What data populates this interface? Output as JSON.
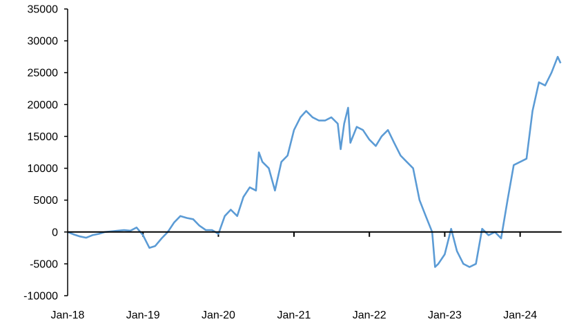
{
  "chart_data": {
    "type": "line",
    "title": "",
    "xlabel": "",
    "ylabel": "",
    "ylim": [
      -10000,
      35000
    ],
    "yticks": [
      -10000,
      -5000,
      0,
      5000,
      10000,
      15000,
      20000,
      25000,
      30000,
      35000
    ],
    "xlim": [
      "2018-01-01",
      "2024-07-20"
    ],
    "xticks": [
      {
        "date": "2018-01-01",
        "label": "Jan-18"
      },
      {
        "date": "2019-01-01",
        "label": "Jan-19"
      },
      {
        "date": "2020-01-01",
        "label": "Jan-20"
      },
      {
        "date": "2021-01-01",
        "label": "Jan-21"
      },
      {
        "date": "2022-01-01",
        "label": "Jan-22"
      },
      {
        "date": "2023-01-01",
        "label": "Jan-23"
      },
      {
        "date": "2024-01-01",
        "label": "Jan-24"
      }
    ],
    "grid": false,
    "legend": "none",
    "color": "#5B9BD5",
    "series": [
      {
        "x": [
          "2018-01-01",
          "2018-02-01",
          "2018-03-01",
          "2018-04-01",
          "2018-05-01",
          "2018-06-01",
          "2018-07-01",
          "2018-08-01",
          "2018-09-01",
          "2018-10-01",
          "2018-11-01",
          "2018-12-01",
          "2019-01-01",
          "2019-02-01",
          "2019-03-01",
          "2019-04-01",
          "2019-05-01",
          "2019-06-01",
          "2019-07-01",
          "2019-08-01",
          "2019-09-01",
          "2019-10-01",
          "2019-11-01",
          "2019-12-01",
          "2020-01-01",
          "2020-02-01",
          "2020-03-01",
          "2020-04-01",
          "2020-05-01",
          "2020-06-01",
          "2020-07-01",
          "2020-07-15",
          "2020-08-01",
          "2020-09-01",
          "2020-10-01",
          "2020-11-01",
          "2020-12-01",
          "2021-01-01",
          "2021-02-01",
          "2021-03-01",
          "2021-04-01",
          "2021-05-01",
          "2021-06-01",
          "2021-07-01",
          "2021-08-01",
          "2021-08-15",
          "2021-09-01",
          "2021-09-20",
          "2021-10-01",
          "2021-11-01",
          "2021-12-01",
          "2022-01-01",
          "2022-02-01",
          "2022-03-01",
          "2022-04-01",
          "2022-05-01",
          "2022-06-01",
          "2022-07-01",
          "2022-08-01",
          "2022-09-01",
          "2022-10-01",
          "2022-11-01",
          "2022-11-15",
          "2022-12-01",
          "2023-01-01",
          "2023-02-01",
          "2023-03-01",
          "2023-04-01",
          "2023-05-01",
          "2023-06-01",
          "2023-07-01",
          "2023-08-01",
          "2023-09-01",
          "2023-10-01",
          "2023-11-01",
          "2023-12-01",
          "2024-01-01",
          "2024-02-01",
          "2024-03-01",
          "2024-04-01",
          "2024-05-01",
          "2024-06-01",
          "2024-07-01",
          "2024-07-15"
        ],
        "y": [
          0,
          -400,
          -700,
          -900,
          -500,
          -300,
          0,
          100,
          200,
          300,
          200,
          700,
          -500,
          -2500,
          -2200,
          -1000,
          0,
          1500,
          2500,
          2200,
          2000,
          1000,
          300,
          300,
          -300,
          2500,
          3500,
          2500,
          5500,
          7000,
          6500,
          12500,
          11000,
          10000,
          6500,
          11000,
          12000,
          16000,
          18000,
          19000,
          18000,
          17500,
          17500,
          18000,
          17000,
          13000,
          17000,
          19500,
          14000,
          16500,
          16000,
          14500,
          13500,
          15000,
          16000,
          14000,
          12000,
          11000,
          10000,
          5000,
          2500,
          0,
          -5500,
          -5000,
          -3500,
          500,
          -3000,
          -5000,
          -5500,
          -5000,
          500,
          -500,
          0,
          -1000,
          5000,
          10500,
          11000,
          11500,
          19000,
          23500,
          23000,
          25000,
          27500,
          26500
        ]
      }
    ]
  }
}
